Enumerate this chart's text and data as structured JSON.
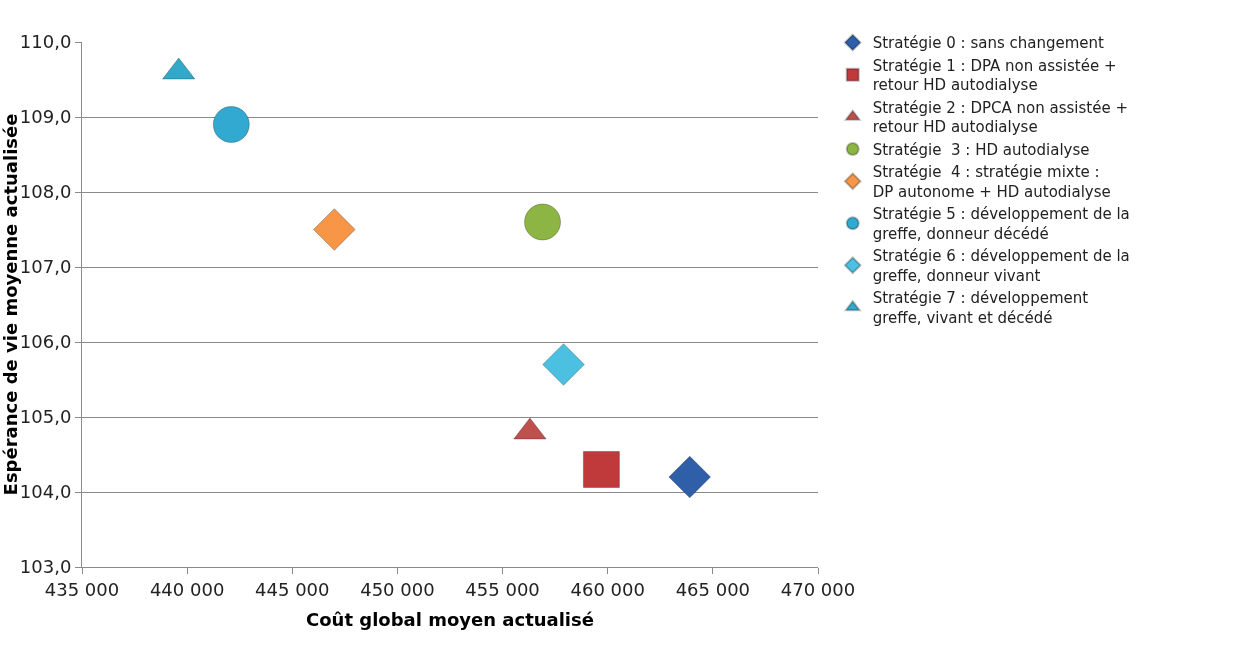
{
  "chart_data": {
    "type": "scatter",
    "xlabel": "Coût global moyen actualisé",
    "ylabel": "Espérance de vie moyenne actualisée",
    "xlim": [
      435000,
      470000
    ],
    "xticks": [
      {
        "value": 435000,
        "label": "435 000"
      },
      {
        "value": 440000,
        "label": "440 000"
      },
      {
        "value": 445000,
        "label": "445 000"
      },
      {
        "value": 450000,
        "label": "450 000"
      },
      {
        "value": 455000,
        "label": "455 000"
      },
      {
        "value": 460000,
        "label": "460 000"
      },
      {
        "value": 465000,
        "label": "465 000"
      },
      {
        "value": 470000,
        "label": "470 000"
      }
    ],
    "ylim": [
      103,
      110
    ],
    "yticks": [
      {
        "value": 103,
        "label": "103,0"
      },
      {
        "value": 104,
        "label": "104,0"
      },
      {
        "value": 105,
        "label": "105,0"
      },
      {
        "value": 106,
        "label": "106,0"
      },
      {
        "value": 107,
        "label": "107,0"
      },
      {
        "value": 108,
        "label": "108,0"
      },
      {
        "value": 109,
        "label": "109,0"
      },
      {
        "value": 110,
        "label": "110,0"
      }
    ],
    "grid": "y",
    "legend": "right",
    "series": [
      {
        "name": "Stratégie 0 : sans changement",
        "color": "#2e5fa8",
        "marker": "diamond",
        "x": [
          463900
        ],
        "values": [
          104.2
        ]
      },
      {
        "name": "Stratégie 1 : DPA non assistée + retour HD autodialyse",
        "color": "#c0393b",
        "marker": "square",
        "x": [
          459700
        ],
        "values": [
          104.3
        ]
      },
      {
        "name": "Stratégie 2 : DPCA non assistée + retour HD autodialyse",
        "color": "#c0504d",
        "marker": "triangle",
        "x": [
          456300
        ],
        "values": [
          104.8
        ]
      },
      {
        "name": "Stratégie  3 : HD autodialyse",
        "color": "#8db543",
        "marker": "circle",
        "x": [
          456900
        ],
        "values": [
          107.6
        ]
      },
      {
        "name": "Stratégie  4 : stratégie mixte : DP autonome + HD autodialyse",
        "color": "#f79646",
        "marker": "diamond",
        "x": [
          447000
        ],
        "values": [
          107.5
        ]
      },
      {
        "name": "Stratégie 5 : développement de la greffe, donneur décédé",
        "color": "#31a9d0",
        "marker": "circle",
        "x": [
          442100
        ],
        "values": [
          108.9
        ]
      },
      {
        "name": "Stratégie 6 : développement de la greffe, donneur vivant",
        "color": "#4bc0e0",
        "marker": "diamond",
        "x": [
          457900
        ],
        "values": [
          105.7
        ]
      },
      {
        "name": "Stratégie 7 : développement greffe, vivant et décédé",
        "color": "#31a9c8",
        "marker": "triangle",
        "x": [
          439600
        ],
        "values": [
          109.6
        ]
      }
    ]
  }
}
